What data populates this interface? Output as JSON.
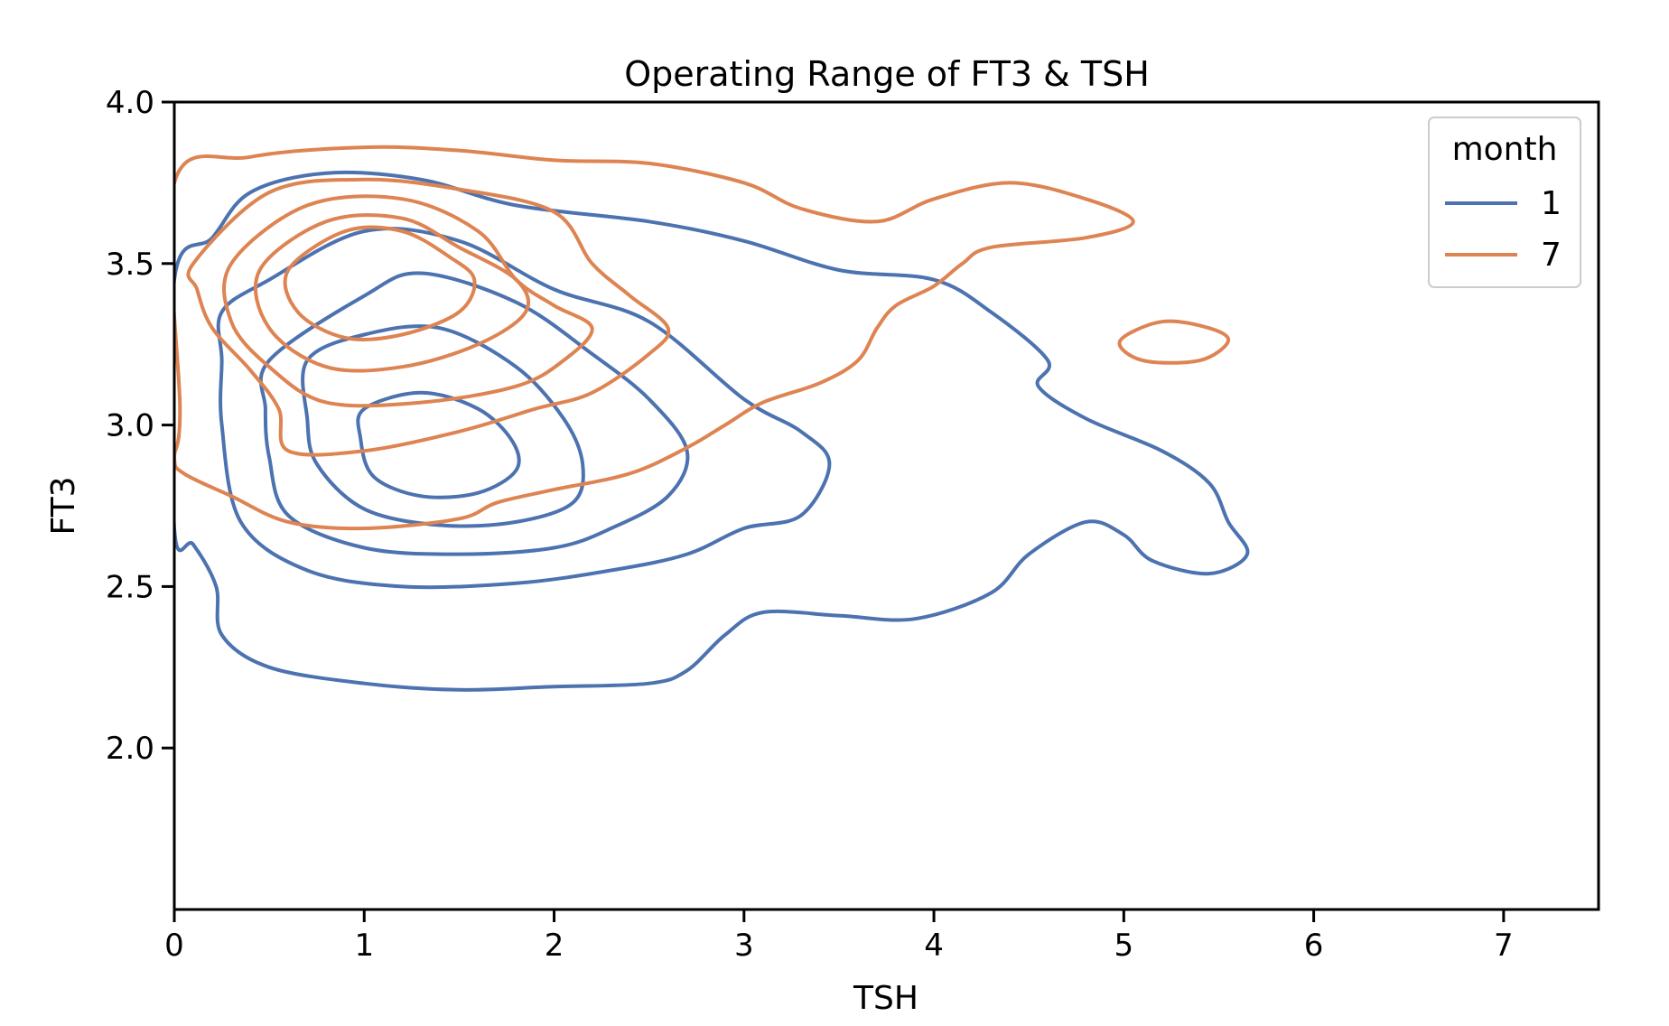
{
  "chart_data": {
    "type": "kde-contour",
    "title": "Operating Range of FT3 & TSH",
    "xlabel": "TSH",
    "ylabel": "FT3",
    "xlim": [
      0,
      7.5
    ],
    "ylim": [
      1.5,
      4.0
    ],
    "x_ticks": [
      0,
      1,
      2,
      3,
      4,
      5,
      6,
      7
    ],
    "x_tick_labels": [
      "0",
      "1",
      "2",
      "3",
      "4",
      "5",
      "6",
      "7"
    ],
    "y_ticks": [
      2.0,
      2.5,
      3.0,
      3.5,
      4.0
    ],
    "y_tick_labels": [
      "2.0",
      "2.5",
      "3.0",
      "3.5",
      "4.0"
    ],
    "grid": false,
    "legend": {
      "title": "month",
      "placement": "top-right",
      "entries": [
        {
          "label": "1",
          "color": "#4c72b0"
        },
        {
          "label": "7",
          "color": "#dd8452"
        }
      ]
    },
    "series": [
      {
        "label": "1",
        "color": "#4c72b0",
        "contours": [
          [
            [
              0.0,
              3.45
            ],
            [
              0.2,
              3.58
            ],
            [
              0.4,
              3.72
            ],
            [
              0.8,
              3.78
            ],
            [
              1.3,
              3.76
            ],
            [
              1.8,
              3.68
            ],
            [
              2.5,
              3.63
            ],
            [
              3.0,
              3.57
            ],
            [
              3.5,
              3.48
            ],
            [
              4.0,
              3.45
            ],
            [
              4.3,
              3.35
            ],
            [
              4.6,
              3.2
            ],
            [
              4.55,
              3.12
            ],
            [
              4.8,
              3.02
            ],
            [
              5.2,
              2.92
            ],
            [
              5.45,
              2.82
            ],
            [
              5.55,
              2.7
            ],
            [
              5.65,
              2.6
            ],
            [
              5.45,
              2.54
            ],
            [
              5.15,
              2.58
            ],
            [
              5.0,
              2.66
            ],
            [
              4.8,
              2.7
            ],
            [
              4.5,
              2.6
            ],
            [
              4.3,
              2.48
            ],
            [
              3.9,
              2.4
            ],
            [
              3.5,
              2.41
            ],
            [
              3.1,
              2.42
            ],
            [
              2.9,
              2.35
            ],
            [
              2.7,
              2.24
            ],
            [
              2.5,
              2.2
            ],
            [
              2.0,
              2.19
            ],
            [
              1.5,
              2.18
            ],
            [
              1.0,
              2.2
            ],
            [
              0.5,
              2.25
            ],
            [
              0.25,
              2.35
            ],
            [
              0.22,
              2.5
            ],
            [
              0.1,
              2.63
            ],
            [
              0.0,
              2.68
            ]
          ],
          [
            [
              0.25,
              3.35
            ],
            [
              0.5,
              3.45
            ],
            [
              1.0,
              3.6
            ],
            [
              1.5,
              3.57
            ],
            [
              2.0,
              3.42
            ],
            [
              2.5,
              3.32
            ],
            [
              3.0,
              3.08
            ],
            [
              3.3,
              2.98
            ],
            [
              3.45,
              2.88
            ],
            [
              3.3,
              2.72
            ],
            [
              3.0,
              2.68
            ],
            [
              2.7,
              2.6
            ],
            [
              2.3,
              2.55
            ],
            [
              1.8,
              2.51
            ],
            [
              1.2,
              2.5
            ],
            [
              0.7,
              2.55
            ],
            [
              0.35,
              2.7
            ],
            [
              0.25,
              3.0
            ],
            [
              0.25,
              3.2
            ]
          ],
          [
            [
              0.5,
              3.2
            ],
            [
              1.0,
              3.4
            ],
            [
              1.3,
              3.47
            ],
            [
              1.8,
              3.38
            ],
            [
              2.2,
              3.22
            ],
            [
              2.5,
              3.08
            ],
            [
              2.7,
              2.92
            ],
            [
              2.6,
              2.78
            ],
            [
              2.3,
              2.68
            ],
            [
              2.0,
              2.62
            ],
            [
              1.5,
              2.6
            ],
            [
              1.0,
              2.62
            ],
            [
              0.6,
              2.72
            ],
            [
              0.5,
              2.9
            ],
            [
              0.48,
              3.05
            ]
          ],
          [
            [
              0.7,
              3.2
            ],
            [
              1.0,
              3.28
            ],
            [
              1.4,
              3.3
            ],
            [
              1.8,
              3.18
            ],
            [
              2.05,
              3.02
            ],
            [
              2.15,
              2.88
            ],
            [
              2.1,
              2.76
            ],
            [
              1.8,
              2.7
            ],
            [
              1.4,
              2.69
            ],
            [
              1.0,
              2.74
            ],
            [
              0.75,
              2.88
            ],
            [
              0.7,
              3.02
            ]
          ],
          [
            [
              1.0,
              3.05
            ],
            [
              1.3,
              3.1
            ],
            [
              1.6,
              3.05
            ],
            [
              1.78,
              2.95
            ],
            [
              1.8,
              2.86
            ],
            [
              1.6,
              2.79
            ],
            [
              1.3,
              2.78
            ],
            [
              1.05,
              2.84
            ],
            [
              0.98,
              2.96
            ]
          ]
        ]
      },
      {
        "label": "7",
        "color": "#dd8452",
        "contours": [
          [
            [
              0.0,
              3.75
            ],
            [
              0.4,
              3.83
            ],
            [
              1.0,
              3.86
            ],
            [
              1.5,
              3.85
            ],
            [
              2.0,
              3.82
            ],
            [
              2.5,
              3.81
            ],
            [
              3.0,
              3.75
            ],
            [
              3.3,
              3.67
            ],
            [
              3.7,
              3.63
            ],
            [
              4.0,
              3.7
            ],
            [
              4.4,
              3.75
            ],
            [
              4.8,
              3.7
            ],
            [
              5.05,
              3.63
            ],
            [
              4.8,
              3.58
            ],
            [
              4.3,
              3.55
            ],
            [
              4.15,
              3.5
            ],
            [
              4.0,
              3.43
            ],
            [
              3.8,
              3.37
            ],
            [
              3.7,
              3.3
            ],
            [
              3.6,
              3.2
            ],
            [
              3.4,
              3.13
            ],
            [
              3.1,
              3.07
            ],
            [
              2.9,
              3.0
            ],
            [
              2.7,
              2.93
            ],
            [
              2.4,
              2.85
            ],
            [
              2.0,
              2.8
            ],
            [
              1.7,
              2.76
            ],
            [
              1.5,
              2.71
            ],
            [
              1.0,
              2.68
            ],
            [
              0.6,
              2.7
            ],
            [
              0.3,
              2.78
            ],
            [
              0.05,
              2.85
            ],
            [
              0.0,
              2.9
            ],
            [
              0.03,
              3.05
            ]
          ],
          [
            [
              0.1,
              3.5
            ],
            [
              0.5,
              3.72
            ],
            [
              1.0,
              3.76
            ],
            [
              1.5,
              3.73
            ],
            [
              2.0,
              3.66
            ],
            [
              2.2,
              3.5
            ],
            [
              2.4,
              3.4
            ],
            [
              2.6,
              3.3
            ],
            [
              2.5,
              3.22
            ],
            [
              2.2,
              3.1
            ],
            [
              1.9,
              3.05
            ],
            [
              1.5,
              2.98
            ],
            [
              1.0,
              2.92
            ],
            [
              0.6,
              2.92
            ],
            [
              0.55,
              3.05
            ],
            [
              0.4,
              3.17
            ],
            [
              0.2,
              3.3
            ],
            [
              0.12,
              3.42
            ]
          ],
          [
            [
              0.3,
              3.5
            ],
            [
              0.7,
              3.68
            ],
            [
              1.2,
              3.7
            ],
            [
              1.6,
              3.6
            ],
            [
              1.8,
              3.45
            ],
            [
              2.0,
              3.37
            ],
            [
              2.2,
              3.3
            ],
            [
              2.05,
              3.2
            ],
            [
              1.8,
              3.12
            ],
            [
              1.3,
              3.07
            ],
            [
              0.8,
              3.07
            ],
            [
              0.5,
              3.18
            ],
            [
              0.3,
              3.32
            ]
          ],
          [
            [
              0.45,
              3.48
            ],
            [
              0.8,
              3.63
            ],
            [
              1.2,
              3.64
            ],
            [
              1.5,
              3.55
            ],
            [
              1.8,
              3.45
            ],
            [
              1.85,
              3.35
            ],
            [
              1.6,
              3.25
            ],
            [
              1.2,
              3.18
            ],
            [
              0.8,
              3.18
            ],
            [
              0.5,
              3.3
            ]
          ],
          [
            [
              0.6,
              3.48
            ],
            [
              0.9,
              3.6
            ],
            [
              1.2,
              3.6
            ],
            [
              1.45,
              3.52
            ],
            [
              1.58,
              3.45
            ],
            [
              1.5,
              3.35
            ],
            [
              1.2,
              3.28
            ],
            [
              0.9,
              3.27
            ],
            [
              0.65,
              3.35
            ]
          ],
          [
            [
              4.98,
              3.26
            ],
            [
              5.2,
              3.32
            ],
            [
              5.45,
              3.3
            ],
            [
              5.55,
              3.26
            ],
            [
              5.4,
              3.2
            ],
            [
              5.1,
              3.2
            ]
          ]
        ]
      }
    ]
  }
}
